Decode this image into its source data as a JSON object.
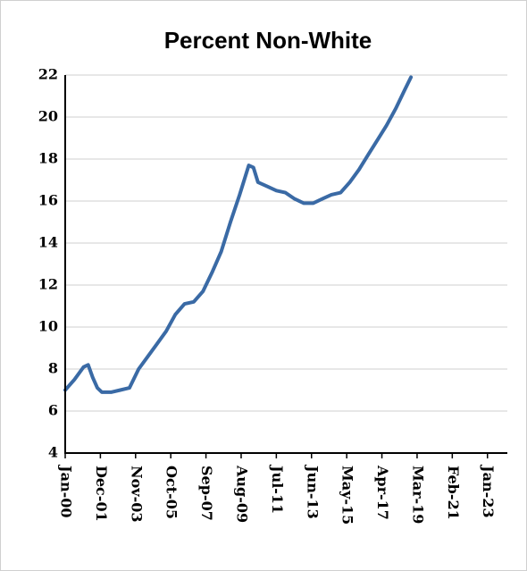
{
  "chart_data": {
    "type": "line",
    "title": "Percent Non-White",
    "x": [
      "2000-01",
      "2000-07",
      "2001-01",
      "2001-04",
      "2001-07",
      "2001-10",
      "2002-01",
      "2002-07",
      "2003-01",
      "2003-07",
      "2004-01",
      "2004-07",
      "2005-01",
      "2005-07",
      "2006-01",
      "2006-07",
      "2007-01",
      "2007-07",
      "2008-01",
      "2008-07",
      "2009-01",
      "2009-07",
      "2009-10",
      "2010-01",
      "2010-04",
      "2010-07",
      "2011-01",
      "2011-07",
      "2012-01",
      "2012-07",
      "2013-01",
      "2013-07",
      "2014-01",
      "2014-07",
      "2015-01",
      "2015-07",
      "2016-01",
      "2016-07",
      "2017-01",
      "2017-07",
      "2018-01",
      "2018-07",
      "2018-11"
    ],
    "series": [
      {
        "color": "#3a6aa5",
        "values": [
          7.0,
          7.5,
          8.1,
          8.2,
          7.6,
          7.1,
          6.9,
          6.9,
          7.0,
          7.1,
          8.0,
          8.6,
          9.2,
          9.8,
          10.6,
          11.1,
          11.2,
          11.7,
          12.6,
          13.6,
          15.0,
          16.3,
          17.0,
          17.7,
          17.6,
          16.9,
          16.7,
          16.5,
          16.4,
          16.1,
          15.9,
          15.9,
          16.1,
          16.3,
          16.4,
          16.9,
          17.5,
          18.2,
          18.9,
          19.6,
          20.4,
          21.3,
          21.9
        ]
      }
    ],
    "xlim": [
      "2000-01",
      "2024-02"
    ],
    "xticks": [
      {
        "value": "2000-01",
        "label": "Jan-00"
      },
      {
        "value": "2001-12",
        "label": "Dec-01"
      },
      {
        "value": "2003-11",
        "label": "Nov-03"
      },
      {
        "value": "2005-10",
        "label": "Oct-05"
      },
      {
        "value": "2007-09",
        "label": "Sep-07"
      },
      {
        "value": "2009-08",
        "label": "Aug-09"
      },
      {
        "value": "2011-07",
        "label": "Jul-11"
      },
      {
        "value": "2013-06",
        "label": "Jun-13"
      },
      {
        "value": "2015-05",
        "label": "May-15"
      },
      {
        "value": "2017-04",
        "label": "Apr-17"
      },
      {
        "value": "2019-03",
        "label": "Mar-19"
      },
      {
        "value": "2021-02",
        "label": "Feb-21"
      },
      {
        "value": "2023-01",
        "label": "Jan-23"
      }
    ],
    "ylim": [
      4,
      22
    ],
    "yticks": [
      4,
      6,
      8,
      10,
      12,
      14,
      16,
      18,
      20,
      22
    ],
    "grid": true
  }
}
